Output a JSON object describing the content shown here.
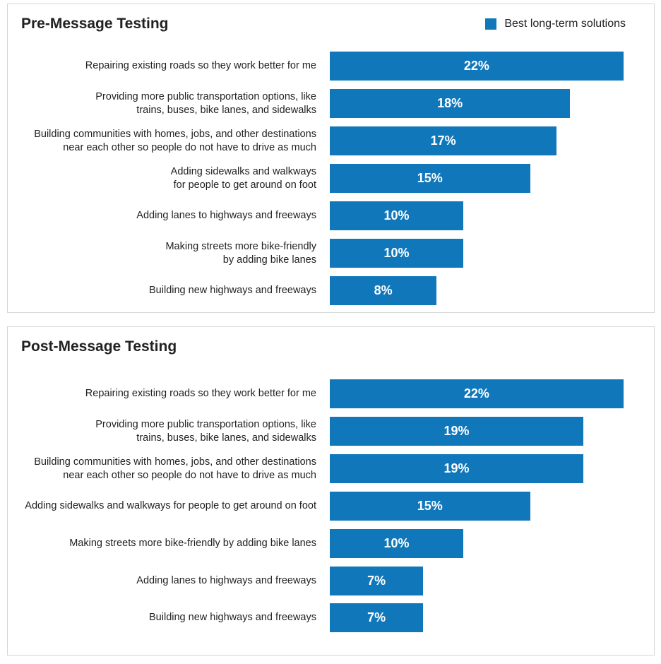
{
  "chart_data": [
    {
      "type": "bar",
      "orientation": "horizontal",
      "title": "Pre-Message Testing",
      "legend": "Best long-term solutions",
      "legend_position": "top-right",
      "unit": "%",
      "categories": [
        "Repairing existing roads so they work better for me",
        "Providing more public transportation options, like\ntrains, buses, bike lanes, and sidewalks",
        "Building communities with homes, jobs, and other destinations\nnear each other so people do not have to drive as much",
        "Adding sidewalks and walkways\nfor people to get around on foot",
        "Adding lanes to highways and freeways",
        "Making streets more bike-friendly\nby adding bike lanes",
        "Building new highways and freeways"
      ],
      "values": [
        22,
        18,
        17,
        15,
        10,
        10,
        8
      ],
      "data_labels": [
        "22%",
        "18%",
        "17%",
        "15%",
        "10%",
        "10%",
        "8%"
      ]
    },
    {
      "type": "bar",
      "orientation": "horizontal",
      "title": "Post-Message Testing",
      "unit": "%",
      "categories": [
        "Repairing existing roads so they work better for me",
        "Providing more public transportation options, like\ntrains, buses, bike lanes, and sidewalks",
        "Building communities with homes, jobs, and other destinations\nnear each other so people do not have to drive as much",
        "Adding sidewalks and walkways for people to get around on foot",
        "Making streets more bike-friendly by adding bike lanes",
        "Adding lanes to highways and freeways",
        "Building new highways and freeways"
      ],
      "values": [
        22,
        19,
        19,
        15,
        10,
        7,
        7
      ],
      "data_labels": [
        "22%",
        "19%",
        "19%",
        "15%",
        "10%",
        "7%",
        "7%"
      ]
    }
  ],
  "colors": {
    "bar": "#1077bb"
  }
}
